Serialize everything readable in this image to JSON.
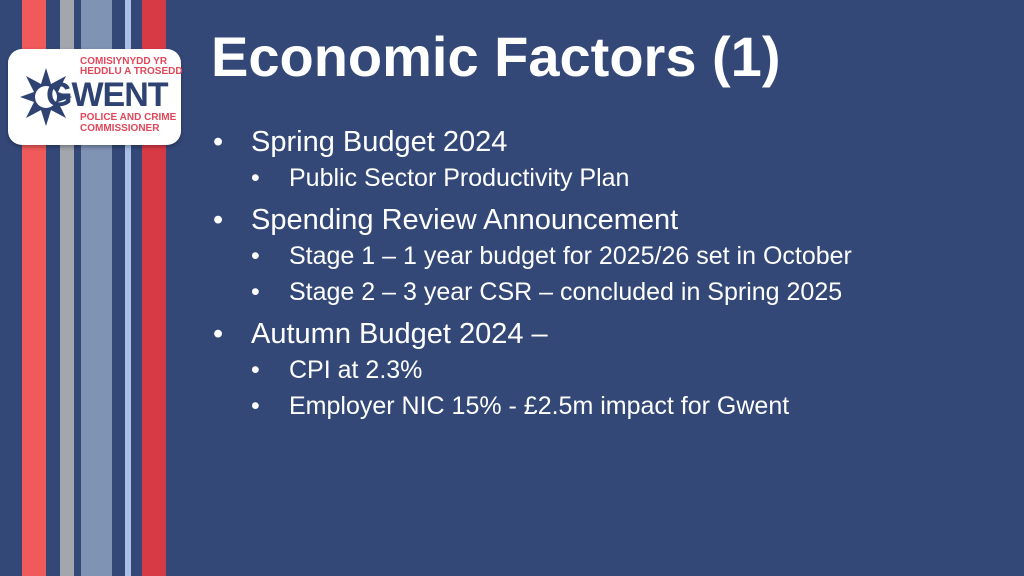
{
  "colors": {
    "background": "#344878",
    "stripe_red": "#f05a5a",
    "stripe_crimson": "#d83a45",
    "stripe_gray": "#a3a7ad",
    "stripe_slate": "#7f93b5",
    "stripe_lightblue": "#a9c0e6"
  },
  "logo": {
    "line1": "COMISIYNYDD YR",
    "line2": "HEDDLU A TROSEDD",
    "name": "GWENT",
    "line3": "POLICE AND CRIME",
    "line4": "COMMISSIONER"
  },
  "slide": {
    "title": "Economic Factors (1)",
    "bullets": [
      {
        "text": "Spring Budget 2024",
        "sub": [
          "Public Sector Productivity Plan"
        ]
      },
      {
        "text": "Spending Review Announcement",
        "sub": [
          "Stage 1 – 1 year budget for 2025/26 set in October",
          "Stage 2 – 3 year CSR – concluded in Spring 2025"
        ]
      },
      {
        "text": "Autumn Budget 2024 –",
        "sub": [
          "CPI at 2.3%",
          "Employer NIC 15% - £2.5m impact for Gwent"
        ]
      }
    ]
  }
}
